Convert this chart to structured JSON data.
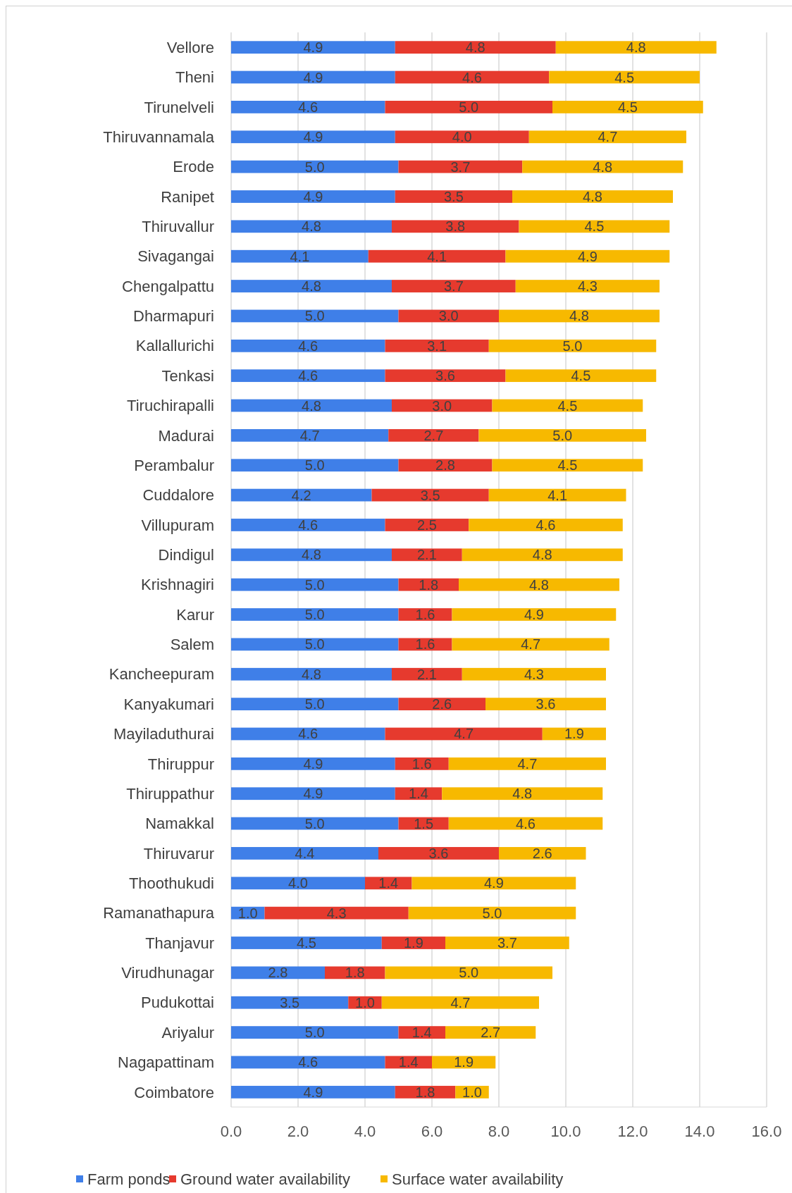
{
  "chart_data": {
    "type": "bar",
    "orientation": "horizontal",
    "stacked": true,
    "grid": "x",
    "legend": "bottom",
    "categories": [
      "Vellore",
      "Theni",
      "Tirunelveli",
      "Thiruvannamala",
      "Erode",
      "Ranipet",
      "Thiruvallur",
      "Sivagangai",
      "Chengalpattu",
      "Dharmapuri",
      "Kallallurichi",
      "Tenkasi",
      "Tiruchirapalli",
      "Madurai",
      "Perambalur",
      "Cuddalore",
      "Villupuram",
      "Dindigul",
      "Krishnagiri",
      "Karur",
      "Salem",
      "Kancheepuram",
      "Kanyakumari",
      "Mayiladuthurai",
      "Thiruppur",
      "Thiruppathur",
      "Namakkal",
      "Thiruvarur",
      "Thoothukudi",
      "Ramanathapura",
      "Thanjavur",
      "Virudhunagar",
      "Pudukottai",
      "Ariyalur",
      "Nagapattinam",
      "Coimbatore"
    ],
    "series": [
      {
        "name": "Farm ponds",
        "color": "#3f7fe8",
        "values": [
          4.9,
          4.9,
          4.6,
          4.9,
          5.0,
          4.9,
          4.8,
          4.1,
          4.8,
          5.0,
          4.6,
          4.6,
          4.8,
          4.7,
          5.0,
          4.2,
          4.6,
          4.8,
          5.0,
          5.0,
          5.0,
          4.8,
          5.0,
          4.6,
          4.9,
          4.9,
          5.0,
          4.4,
          4.0,
          1.0,
          4.5,
          2.8,
          3.5,
          5.0,
          4.6,
          4.9
        ],
        "value_labels": [
          "4.9",
          "4.9",
          "4.6",
          "4.9",
          "5.0",
          "4.9",
          "4.8",
          "4.1",
          "4.8",
          "5.0",
          "4.6",
          "4.6",
          "4.8",
          "4.7",
          "5.0",
          "4.2",
          "4.6",
          "4.8",
          "5.0",
          "5.0",
          "5.0",
          "4.8",
          "5.0",
          "4.6",
          "4.9",
          "4.9",
          "5.0",
          "4.4",
          "4.0",
          "1.0",
          "4.5",
          "2.8",
          "3.5",
          "5.0",
          "4.6",
          "4.9"
        ]
      },
      {
        "name": "Ground water availability",
        "color": "#e63a2e",
        "values": [
          4.8,
          4.6,
          5.0,
          4.0,
          3.7,
          3.5,
          3.8,
          4.1,
          3.7,
          3.0,
          3.1,
          3.6,
          3.0,
          2.7,
          2.8,
          3.5,
          2.5,
          2.1,
          1.8,
          1.6,
          1.6,
          2.1,
          2.6,
          4.7,
          1.6,
          1.4,
          1.5,
          3.6,
          1.4,
          4.3,
          1.9,
          1.8,
          1.0,
          1.4,
          1.4,
          1.8
        ],
        "value_labels": [
          "4.8",
          "4.6",
          "5.0",
          "4.0",
          "3.7",
          "3.5",
          "3.8",
          "4.1",
          "3.7",
          "3.0",
          "3.1",
          "3.6",
          "3.0",
          "2.7",
          "2.8",
          "3.5",
          "2.5",
          "2.1",
          "1.8",
          "1.6",
          "1.6",
          "2.1",
          "2.6",
          "4.7",
          "1.6",
          "1.4",
          "1.5",
          "3.6",
          "1.4",
          "4.3",
          "1.9",
          "1.8",
          "1.0",
          "1.4",
          "1.4",
          "1.8"
        ]
      },
      {
        "name": "Surface water availability",
        "color": "#f7b900",
        "values": [
          4.8,
          4.5,
          4.5,
          4.7,
          4.8,
          4.8,
          4.5,
          4.9,
          4.3,
          4.8,
          5.0,
          4.5,
          4.5,
          5.0,
          4.5,
          4.1,
          4.6,
          4.8,
          4.8,
          4.9,
          4.7,
          4.3,
          3.6,
          1.9,
          4.7,
          4.8,
          4.6,
          2.6,
          4.9,
          5.0,
          3.7,
          5.0,
          4.7,
          2.7,
          1.9,
          1.0
        ],
        "value_labels": [
          "4.8",
          "4.5",
          "4.5",
          "4.7",
          "4.8",
          "4.8",
          "4.5",
          "4.9",
          "4.3",
          "4.8",
          "5.0",
          "4.5",
          "4.5",
          "5.0",
          "4.5",
          "4.1",
          "4.6",
          "4.8",
          "4.8",
          "4.9",
          "4.7",
          "4.3",
          "3.6",
          "1.9",
          "4.7",
          "4.8",
          "4.6",
          "2.6",
          "4.9",
          "5.0",
          "3.7",
          "5.0",
          "4.7",
          "2.7",
          "1.9",
          "1.0"
        ]
      }
    ],
    "xlim": [
      0,
      16
    ],
    "xticks": [
      {
        "value": 0,
        "label": "0.0"
      },
      {
        "value": 2,
        "label": "2.0"
      },
      {
        "value": 4,
        "label": "4.0"
      },
      {
        "value": 6,
        "label": "6.0"
      },
      {
        "value": 8,
        "label": "8.0"
      },
      {
        "value": 10,
        "label": "10.0"
      },
      {
        "value": 12,
        "label": "12.0"
      },
      {
        "value": 14,
        "label": "14.0"
      },
      {
        "value": 16,
        "label": "16.0"
      }
    ]
  }
}
